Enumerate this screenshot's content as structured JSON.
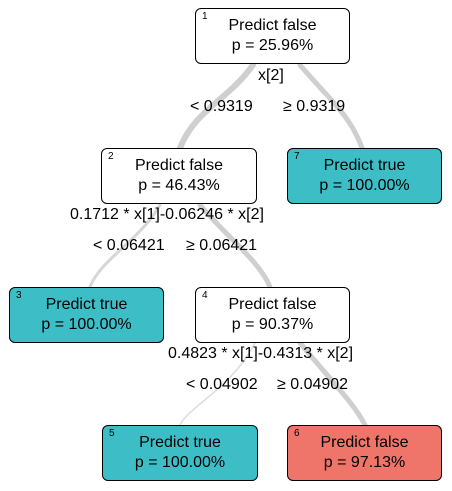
{
  "colors": {
    "white_node": "#ffffff",
    "true_node": "#3dbec7",
    "false_node": "#ef746a",
    "edge": "#d0d0d0"
  },
  "nodes": [
    {
      "id": "1",
      "prediction": "Predict false",
      "probability": "p = 25.96%"
    },
    {
      "id": "2",
      "prediction": "Predict false",
      "probability": "p = 46.43%"
    },
    {
      "id": "7",
      "prediction": "Predict true",
      "probability": "p = 100.00%"
    },
    {
      "id": "3",
      "prediction": "Predict true",
      "probability": "p = 100.00%"
    },
    {
      "id": "4",
      "prediction": "Predict false",
      "probability": "p = 90.37%"
    },
    {
      "id": "5",
      "prediction": "Predict true",
      "probability": "p = 100.00%"
    },
    {
      "id": "6",
      "prediction": "Predict false",
      "probability": "p = 97.13%"
    }
  ],
  "splits": [
    {
      "variable": "x[2]",
      "left": "< 0.9319",
      "right": "≥ 0.9319"
    },
    {
      "variable": "0.1712 * x[1]-0.06246 * x[2]",
      "left": "< 0.06421",
      "right": "≥ 0.06421"
    },
    {
      "variable": "0.4823 * x[1]-0.4313 * x[2]",
      "left": "< 0.04902",
      "right": "≥ 0.04902"
    }
  ]
}
